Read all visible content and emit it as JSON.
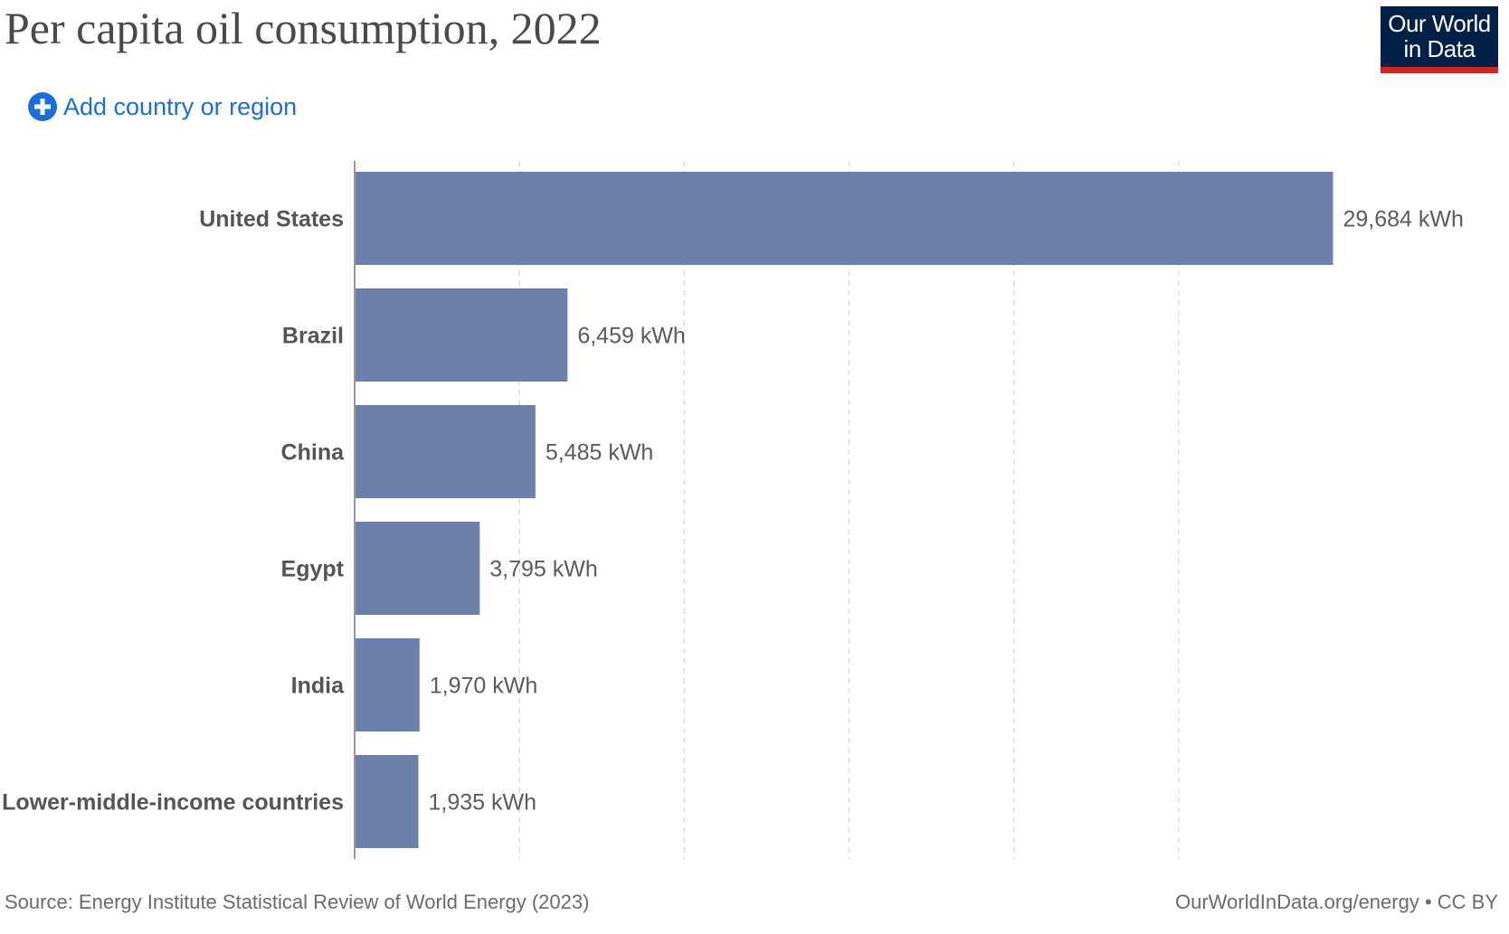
{
  "header": {
    "title": "Per capita oil consumption, 2022",
    "logo_line1": "Our World",
    "logo_line2": "in Data",
    "add_label": "Add country or region",
    "add_icon": "plus-circle-icon"
  },
  "footer": {
    "source": "Source: Energy Institute Statistical Review of World Energy (2023)",
    "credit": "OurWorldInData.org/energy • CC BY"
  },
  "colors": {
    "bar": "#6b80aa",
    "logo_bg": "#002147",
    "logo_accent": "#ce261e",
    "link": "#1a6fd6",
    "gridline": "#dddddd"
  },
  "chart_data": {
    "type": "bar",
    "orientation": "horizontal",
    "categories": [
      "United States",
      "Brazil",
      "China",
      "Egypt",
      "India",
      "Lower-middle-income countries"
    ],
    "values": [
      29684,
      6459,
      5485,
      3795,
      1970,
      1935
    ],
    "value_labels": [
      "29,684 kWh",
      "6,459 kWh",
      "5,485 kWh",
      "3,795 kWh",
      "1,970 kWh",
      "1,935 kWh"
    ],
    "unit": "kWh",
    "xlim": [
      0,
      30000
    ],
    "grid_step": 5000,
    "grid": true,
    "title": "Per capita oil consumption, 2022"
  }
}
